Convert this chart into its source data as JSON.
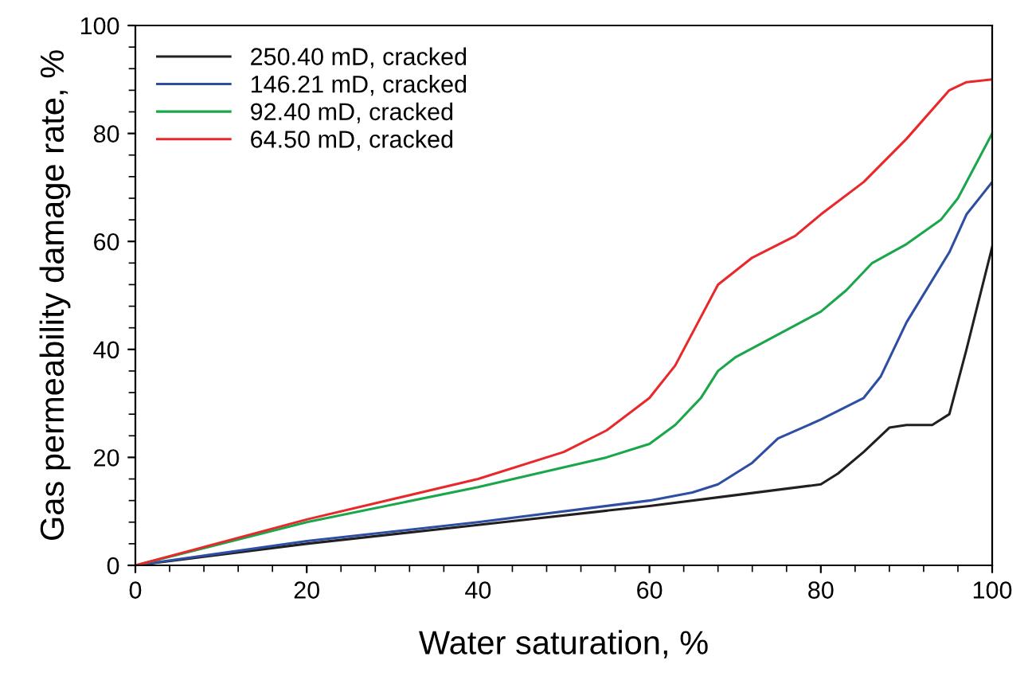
{
  "chart_data": {
    "type": "line",
    "xlabel": "Water saturation, %",
    "ylabel": "Gas permeability damage rate, %",
    "xlim": [
      0,
      100
    ],
    "ylim": [
      0,
      100
    ],
    "xticks": [
      0,
      20,
      40,
      60,
      80,
      100
    ],
    "yticks": [
      0,
      20,
      40,
      60,
      80,
      100
    ],
    "legend": "top left",
    "grid": false,
    "marker": "none",
    "line_style": "solid",
    "series": [
      {
        "name": "250.40 mD, cracked",
        "color": "#231f20",
        "x": [
          0,
          20,
          40,
          60,
          70,
          80,
          82,
          85,
          88,
          90,
          93,
          95,
          97,
          100
        ],
        "values": [
          0,
          4,
          7.5,
          11,
          13,
          15,
          17,
          21,
          25.5,
          26,
          26,
          28,
          40,
          59
        ]
      },
      {
        "name": "146.21 mD, cracked",
        "color": "#2e4ea3",
        "x": [
          0,
          20,
          40,
          60,
          65,
          68,
          72,
          75,
          80,
          85,
          87,
          90,
          95,
          97,
          100
        ],
        "values": [
          0,
          4.5,
          8,
          12,
          13.5,
          15,
          19,
          23.5,
          27,
          31,
          35,
          45,
          58,
          65,
          71
        ]
      },
      {
        "name": "92.40 mD, cracked",
        "color": "#1aa64a",
        "x": [
          0,
          20,
          40,
          55,
          60,
          63,
          66,
          68,
          70,
          80,
          83,
          86,
          90,
          94,
          96,
          100
        ],
        "values": [
          0,
          8,
          14.5,
          20,
          22.5,
          26,
          31,
          36,
          38.5,
          47,
          51,
          56,
          59.5,
          64,
          68,
          80
        ]
      },
      {
        "name": "64.50 mD, cracked",
        "color": "#e8282b",
        "x": [
          0,
          20,
          40,
          50,
          55,
          60,
          63,
          66,
          68,
          72,
          77,
          80,
          85,
          90,
          95,
          97,
          100
        ],
        "values": [
          0,
          8.5,
          16,
          21,
          25,
          31,
          37,
          46,
          52,
          57,
          61,
          65,
          71,
          79,
          88,
          89.5,
          90
        ]
      }
    ]
  }
}
